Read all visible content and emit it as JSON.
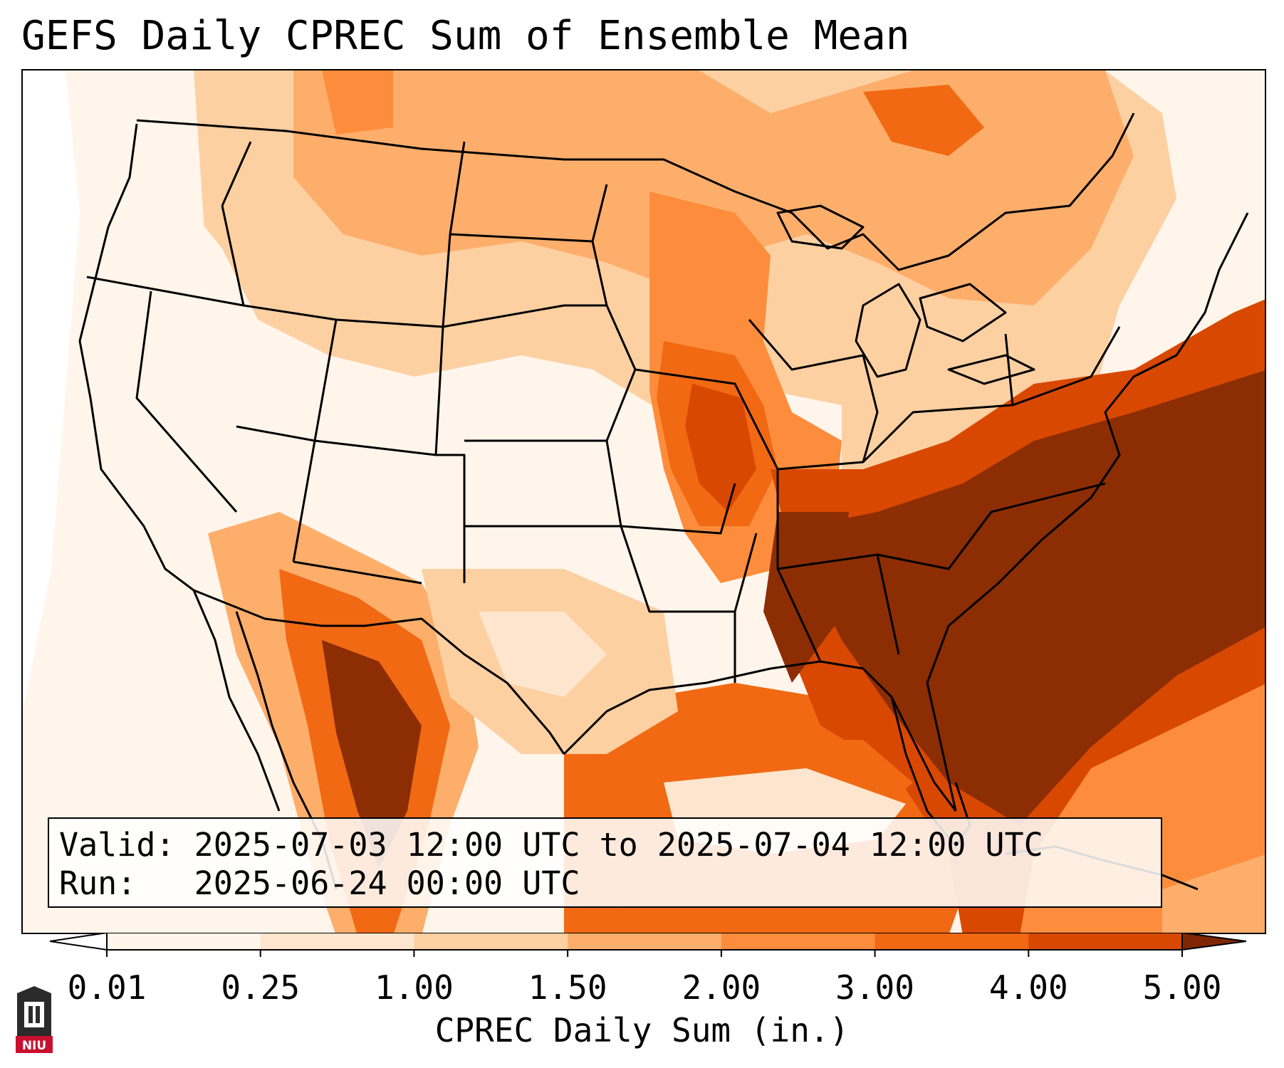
{
  "title": "GEFS Daily CPREC Sum of Ensemble Mean",
  "info": {
    "valid_line": "Valid: 2025-07-03 12:00 UTC to 2025-07-04 12:00 UTC",
    "run_line": "Run:   2025-06-24 00:00 UTC"
  },
  "colorbar": {
    "label": "CPREC Daily Sum (in.)",
    "ticks": [
      "0.01",
      "0.25",
      "1.00",
      "1.50",
      "2.00",
      "3.00",
      "4.00",
      "5.00"
    ],
    "colors": [
      "#fff5eb",
      "#fee6ce",
      "#fdd0a2",
      "#fdae6b",
      "#fd8d3c",
      "#f16913",
      "#d94801",
      "#8c2d04"
    ],
    "under_color": "#ffffff",
    "over_color": "#7f2704"
  },
  "logo": {
    "text": "NIU",
    "colors": {
      "badge": "#c8102e",
      "tower": "#2b2b2b"
    }
  }
}
